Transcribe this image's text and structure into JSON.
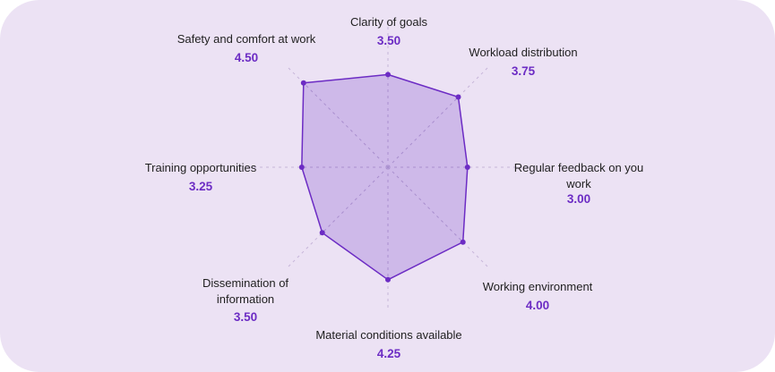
{
  "colors": {
    "background": "#ece2f4",
    "fill": "#c9b1e6",
    "stroke": "#6c2cc4",
    "value_text": "#6c2cc4",
    "gridline": "#c6b5d9"
  },
  "chart_data": {
    "type": "radar",
    "max_value": 5,
    "grid": true,
    "axes": [
      {
        "label": "Clarity of goals",
        "value": 3.5,
        "display": "3.50"
      },
      {
        "label": "Workload distribution",
        "value": 3.75,
        "display": "3.75"
      },
      {
        "label": "Regular feedback on you work",
        "value": 3.0,
        "display": "3.00"
      },
      {
        "label": "Working environment",
        "value": 4.0,
        "display": "4.00"
      },
      {
        "label": "Material conditions available",
        "value": 4.25,
        "display": "4.25"
      },
      {
        "label": "Dissemination of information",
        "value": 3.5,
        "display": "3.50"
      },
      {
        "label": "Training opportunities",
        "value": 3.25,
        "display": "3.25"
      },
      {
        "label": "Safety and comfort at work",
        "value": 4.5,
        "display": "4.50"
      }
    ]
  }
}
